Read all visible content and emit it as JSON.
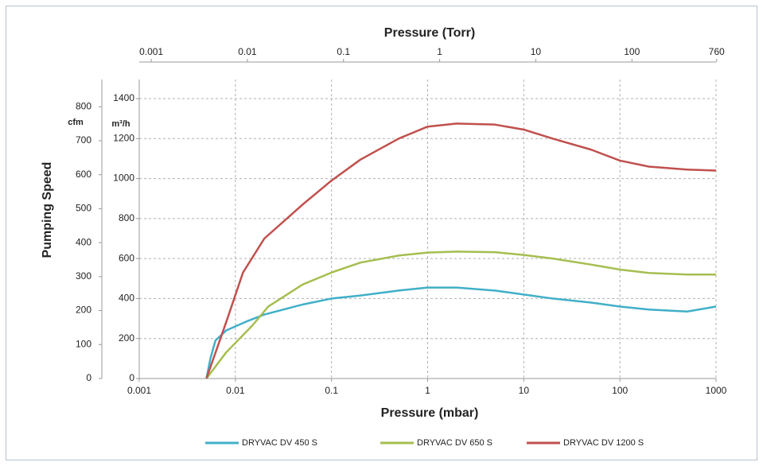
{
  "chart_data": {
    "type": "line",
    "x2label": "Pressure (Torr)",
    "xlabel": "Pressure (mbar)",
    "ylabel": "Pumping Speed",
    "y2unit": "cfm",
    "yunit": "m³/h",
    "xscale": "log",
    "xlim": [
      0.001,
      1000
    ],
    "xticks": [
      0.001,
      0.01,
      0.1,
      1,
      10,
      100,
      1000
    ],
    "x2lim": [
      0.00075,
      750
    ],
    "x2ticks": [
      0.001,
      0.01,
      0.1,
      1,
      10,
      100,
      760
    ],
    "ylim": [
      0,
      1400
    ],
    "yticks": [
      0,
      200,
      400,
      600,
      800,
      1000,
      1200,
      1400
    ],
    "y2lim": [
      0,
      824
    ],
    "y2ticks": [
      0,
      100,
      200,
      300,
      400,
      500,
      600,
      700,
      800
    ],
    "grid": true,
    "legend": "bottom",
    "series": [
      {
        "name": "DRYVAC DV 450 S",
        "color": "#41afc8",
        "x": [
          0.005,
          0.0055,
          0.0062,
          0.008,
          0.013,
          0.02,
          0.05,
          0.1,
          0.2,
          0.5,
          1,
          2,
          5,
          10,
          20,
          50,
          100,
          200,
          500,
          1000
        ],
        "values": [
          0,
          100,
          190,
          240,
          285,
          320,
          370,
          400,
          415,
          440,
          455,
          455,
          440,
          420,
          400,
          380,
          360,
          345,
          335,
          360
        ]
      },
      {
        "name": "DRYVAC DV 650 S",
        "color": "#a5be50",
        "x": [
          0.005,
          0.008,
          0.015,
          0.022,
          0.05,
          0.1,
          0.2,
          0.5,
          1,
          2,
          5,
          10,
          20,
          50,
          100,
          200,
          500,
          1000
        ],
        "values": [
          0,
          130,
          265,
          360,
          470,
          530,
          580,
          615,
          630,
          635,
          632,
          618,
          600,
          570,
          545,
          528,
          520,
          520
        ]
      },
      {
        "name": "DRYVAC DV 1200 S",
        "color": "#c0504d",
        "x": [
          0.005,
          0.008,
          0.012,
          0.02,
          0.05,
          0.1,
          0.2,
          0.5,
          1,
          2,
          5,
          10,
          20,
          50,
          100,
          200,
          500,
          1000
        ],
        "values": [
          0,
          280,
          530,
          700,
          870,
          990,
          1095,
          1200,
          1260,
          1275,
          1270,
          1245,
          1200,
          1145,
          1090,
          1060,
          1045,
          1040
        ]
      }
    ]
  }
}
